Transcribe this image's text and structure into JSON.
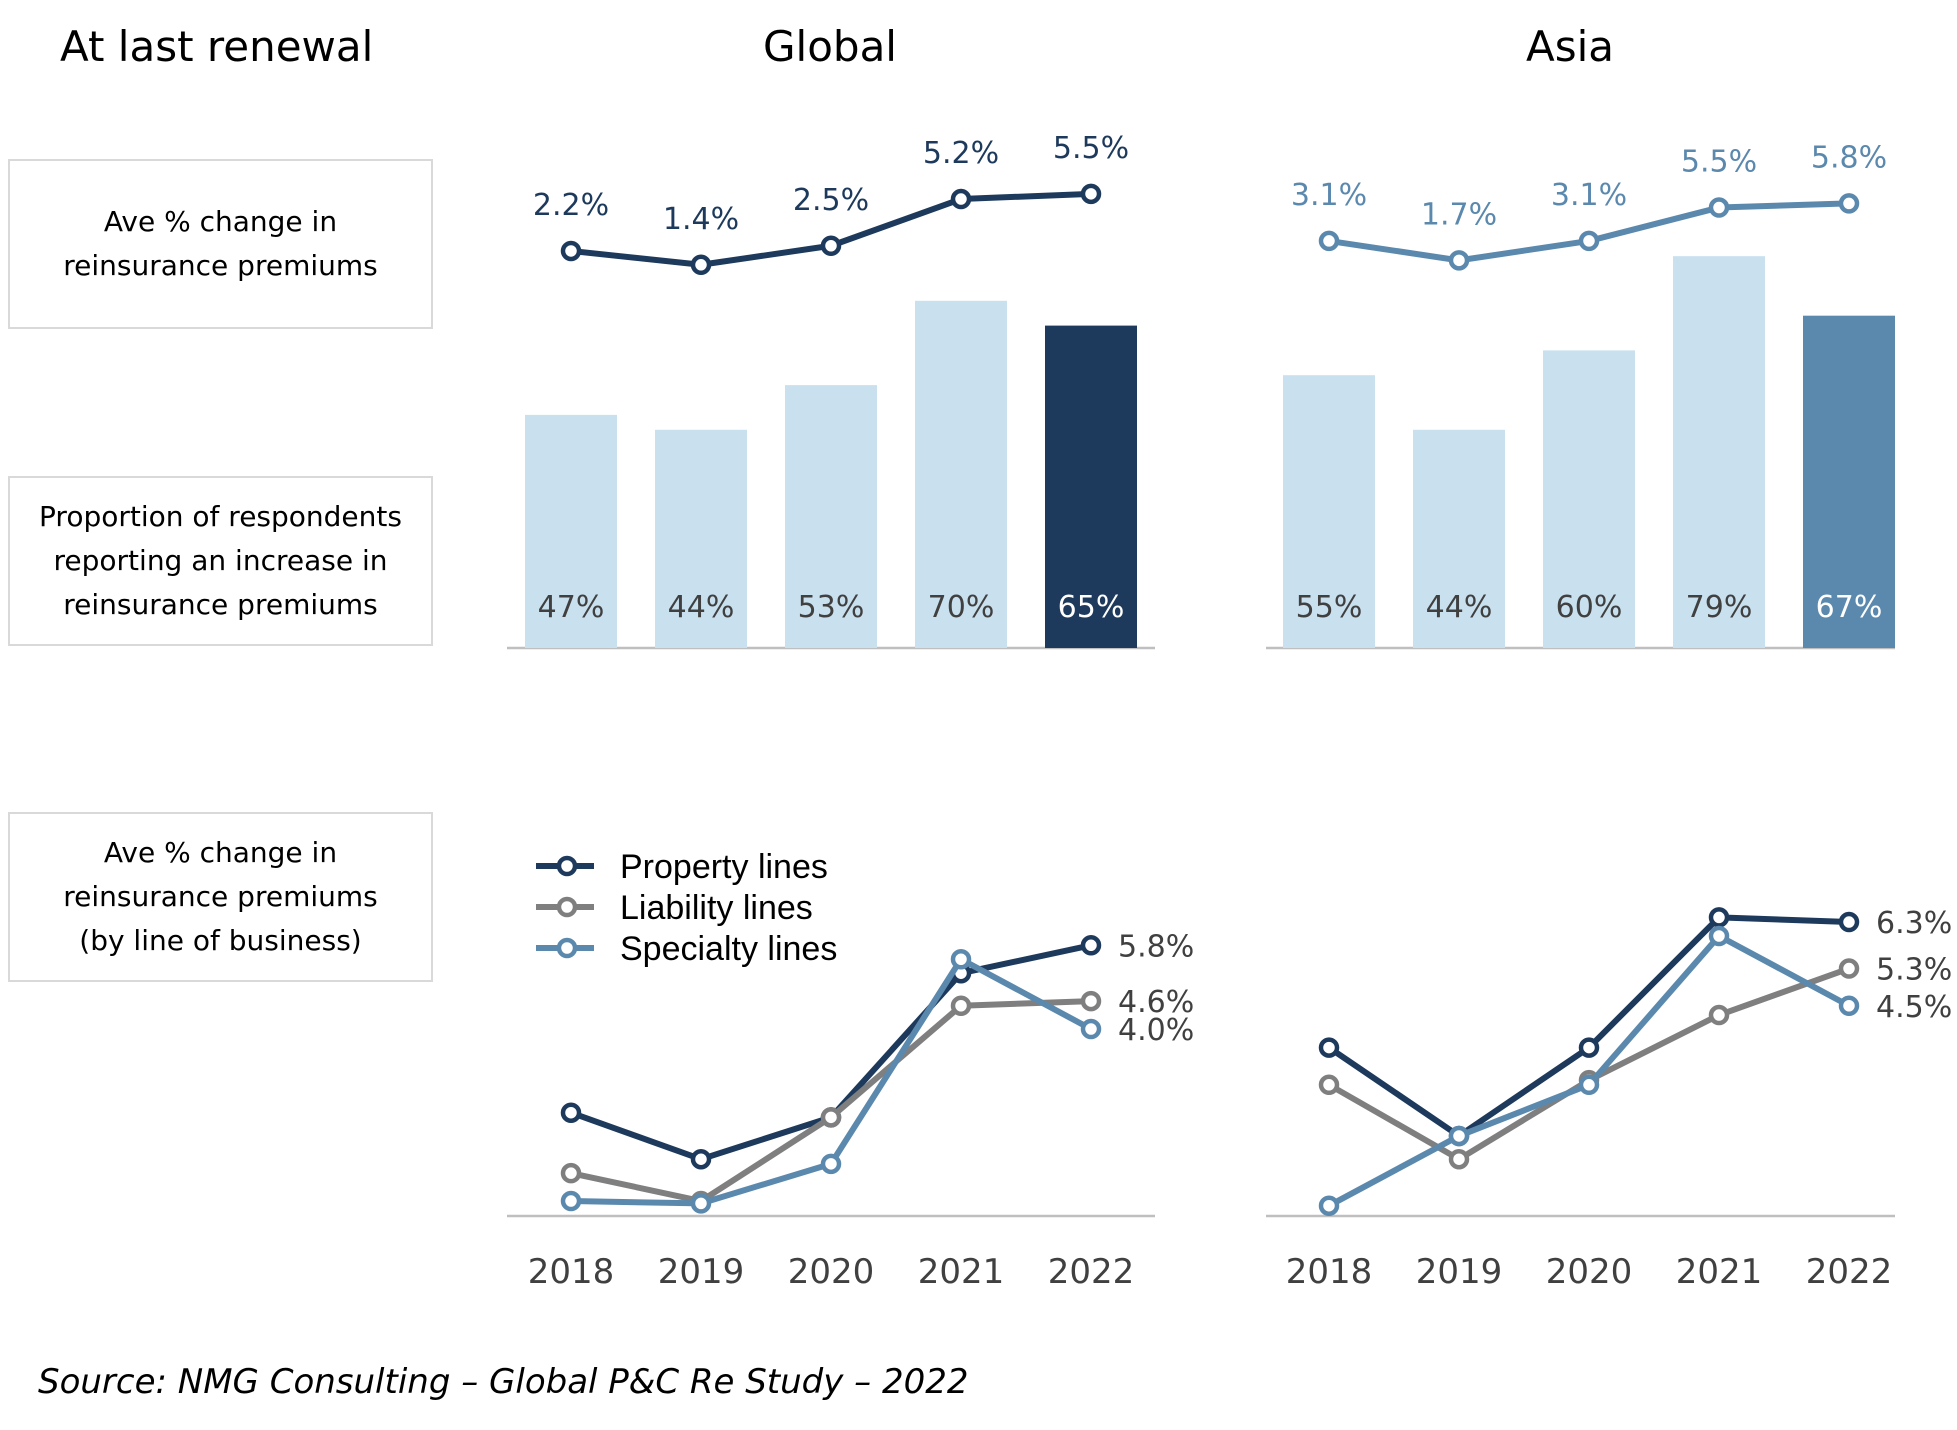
{
  "headings": {
    "left": "At last renewal",
    "global": "Global",
    "asia": "Asia"
  },
  "row_labels": {
    "premiums": [
      "Ave % change in",
      "reinsurance premiums"
    ],
    "proportion": [
      "Proportion of respondents",
      "reporting an increase in",
      "reinsurance premiums"
    ],
    "by_line": [
      "Ave % change in",
      "reinsurance premiums",
      "(by line of business)"
    ]
  },
  "source": "Source: NMG Consulting – Global P&C Re Study – 2022",
  "colors": {
    "navy": "#1d3a5c",
    "steel": "#5b89ae",
    "light_bar": "#c9e0ef",
    "grey": "#7f7f7f",
    "axis": "#bfbfbf"
  },
  "chart_data": [
    {
      "panel": "Global",
      "type": "bar+line",
      "categories": [
        "2018",
        "2019",
        "2020",
        "2021",
        "2022"
      ],
      "bar_values": [
        47,
        44,
        53,
        70,
        65
      ],
      "bar_labels": [
        "47%",
        "44%",
        "53%",
        "70%",
        "65%"
      ],
      "line_values": [
        2.2,
        1.4,
        2.5,
        5.2,
        5.5
      ],
      "line_labels": [
        "2.2%",
        "1.4%",
        "2.5%",
        "5.2%",
        "5.5%"
      ]
    },
    {
      "panel": "Asia",
      "type": "bar+line",
      "categories": [
        "2018",
        "2019",
        "2020",
        "2021",
        "2022"
      ],
      "bar_values": [
        55,
        44,
        60,
        79,
        67
      ],
      "bar_labels": [
        "55%",
        "44%",
        "60%",
        "79%",
        "67%"
      ],
      "line_values": [
        3.1,
        1.7,
        3.1,
        5.5,
        5.8
      ],
      "line_labels": [
        "3.1%",
        "1.7%",
        "3.1%",
        "5.5%",
        "5.8%"
      ]
    },
    {
      "panel": "Global",
      "type": "line",
      "categories": [
        "2018",
        "2019",
        "2020",
        "2021",
        "2022"
      ],
      "series": [
        {
          "name": "Property lines",
          "values": [
            2.2,
            1.2,
            2.1,
            5.2,
            5.8
          ],
          "end_label": "5.8%"
        },
        {
          "name": "Liability lines",
          "values": [
            0.9,
            0.3,
            2.1,
            4.5,
            4.6
          ],
          "end_label": "4.6%"
        },
        {
          "name": "Specialty lines",
          "values": [
            0.3,
            0.25,
            1.1,
            5.5,
            4.0
          ],
          "end_label": "4.0%"
        }
      ]
    },
    {
      "panel": "Asia",
      "type": "line",
      "categories": [
        "2018",
        "2019",
        "2020",
        "2021",
        "2022"
      ],
      "series": [
        {
          "name": "Property lines",
          "values": [
            3.6,
            1.7,
            3.6,
            6.4,
            6.3
          ],
          "end_label": "6.3%"
        },
        {
          "name": "Liability lines",
          "values": [
            2.8,
            1.2,
            2.9,
            4.3,
            5.3
          ],
          "end_label": "5.3%"
        },
        {
          "name": "Specialty lines",
          "values": [
            0.2,
            1.7,
            2.8,
            6.0,
            4.5
          ],
          "end_label": "4.5%"
        }
      ]
    }
  ]
}
